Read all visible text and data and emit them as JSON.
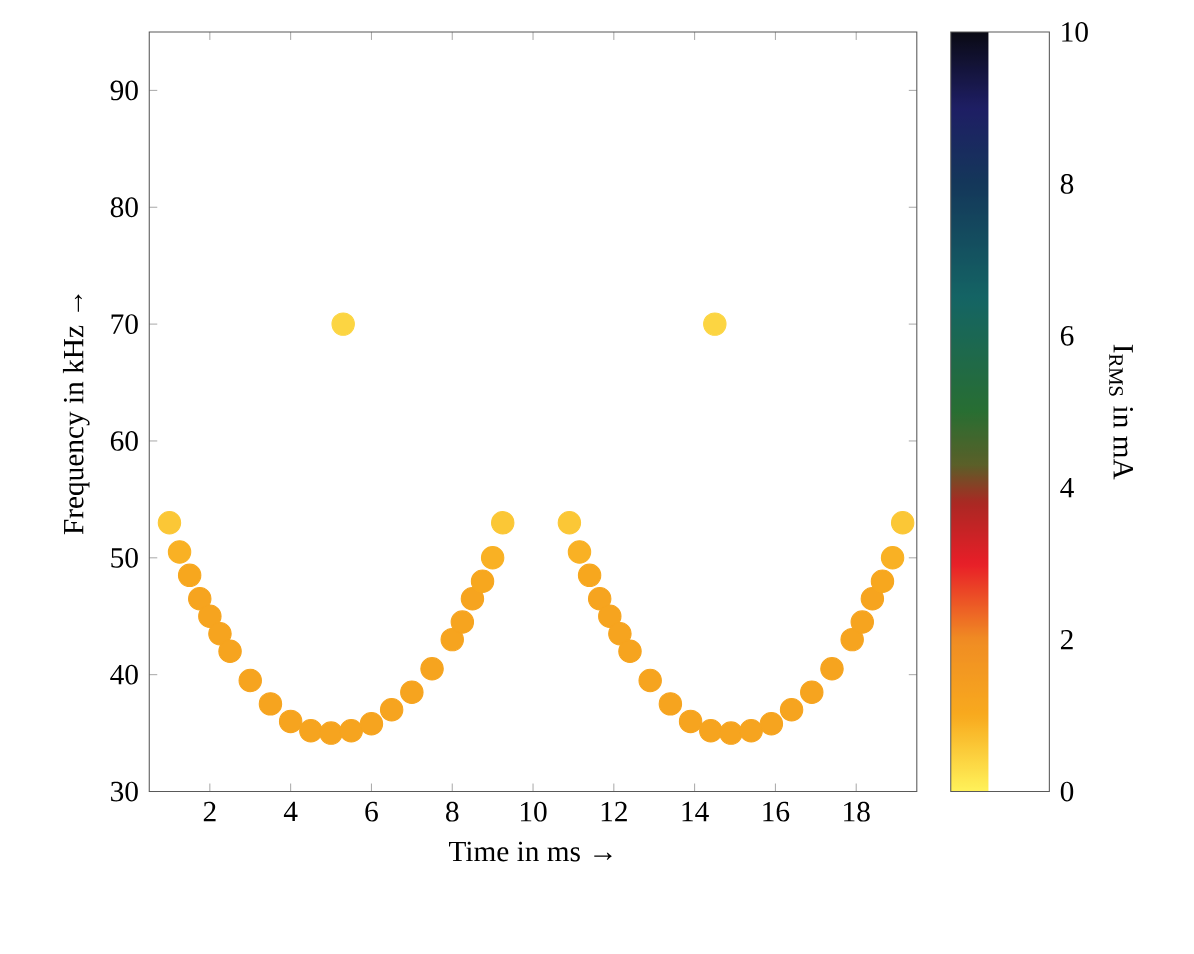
{
  "chart_data": {
    "type": "scatter",
    "xlabel": "Time in ms →",
    "ylabel": "Frequency in kHz →",
    "clabel": "I$_{RMS}$ in mA",
    "x": [
      1.0,
      1.25,
      1.5,
      1.75,
      2.0,
      2.25,
      2.5,
      3.0,
      3.5,
      4.0,
      4.5,
      5.0,
      5.5,
      6.0,
      6.5,
      7.0,
      7.5,
      8.0,
      8.25,
      8.5,
      8.75,
      9.0,
      9.25,
      5.3,
      10.9,
      11.15,
      11.4,
      11.65,
      11.9,
      12.15,
      12.4,
      12.9,
      13.4,
      13.9,
      14.4,
      14.9,
      15.4,
      15.9,
      16.4,
      16.9,
      17.4,
      17.9,
      18.15,
      18.4,
      18.65,
      18.9,
      19.15,
      14.5
    ],
    "values": [
      53,
      50.5,
      48.5,
      46.5,
      45,
      43.5,
      42,
      39.5,
      37.5,
      36,
      35.2,
      35,
      35.2,
      35.8,
      37,
      38.5,
      40.5,
      43,
      44.5,
      46.5,
      48,
      50,
      53,
      70,
      53,
      50.5,
      48.5,
      46.5,
      45,
      43.5,
      42,
      39.5,
      37.5,
      36,
      35.2,
      35,
      35.2,
      35.8,
      37,
      38.5,
      40.5,
      43,
      44.5,
      46.5,
      48,
      50,
      53,
      70
    ],
    "cvalues": [
      0.6,
      0.9,
      1.1,
      1.2,
      1.2,
      1.2,
      1.2,
      1.2,
      1.2,
      1.2,
      1.2,
      1.2,
      1.2,
      1.2,
      1.2,
      1.2,
      1.2,
      1.2,
      1.2,
      1.2,
      1.1,
      0.9,
      0.6,
      0.4,
      0.6,
      0.9,
      1.1,
      1.2,
      1.2,
      1.2,
      1.2,
      1.2,
      1.2,
      1.2,
      1.2,
      1.2,
      1.2,
      1.2,
      1.2,
      1.2,
      1.2,
      1.2,
      1.2,
      1.2,
      1.1,
      0.9,
      0.6,
      0.4
    ],
    "clim": [
      0,
      10
    ],
    "cticks": [
      0,
      2,
      4,
      6,
      8,
      10
    ],
    "xlim": [
      0.5,
      19.5
    ],
    "ylim": [
      30,
      95
    ],
    "xticks": [
      2,
      4,
      6,
      8,
      10,
      12,
      14,
      16,
      18
    ],
    "yticks": [
      30,
      40,
      50,
      60,
      70,
      80,
      90
    ],
    "marker": "circle"
  }
}
